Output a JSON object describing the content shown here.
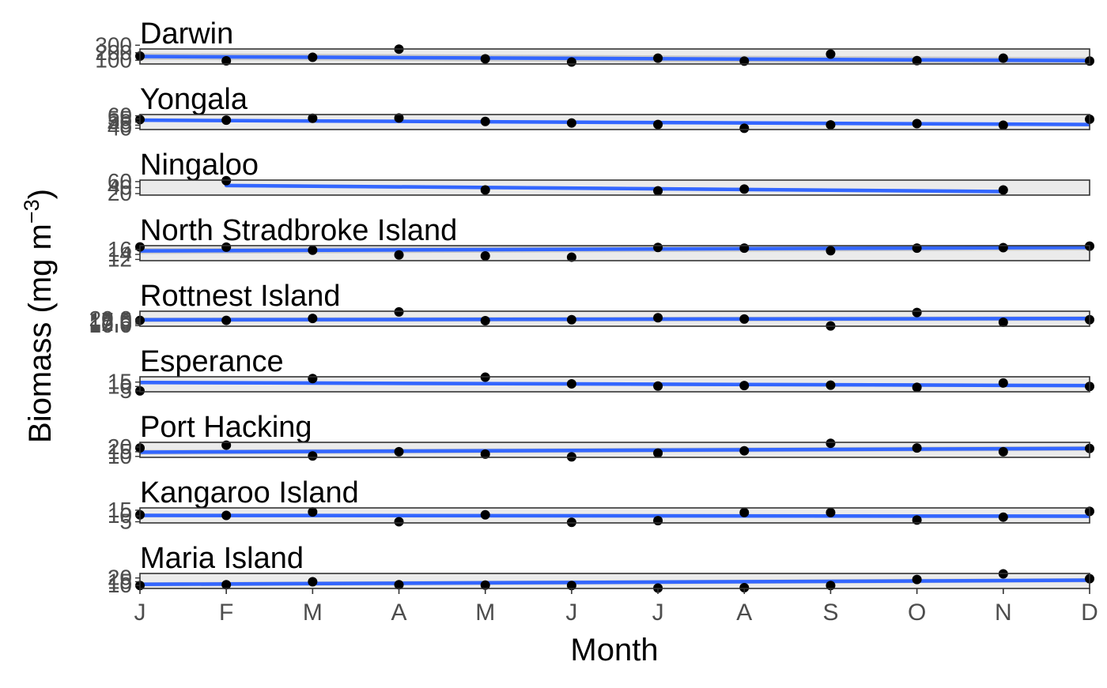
{
  "chart_data": {
    "type": "line",
    "xlabel": "Month",
    "ylabel": "Biomass (mg m",
    "ylabel_superscript": "−3",
    "ylabel_close": ")",
    "x_ticks": [
      "J",
      "F",
      "M",
      "A",
      "M",
      "J",
      "J",
      "A",
      "S",
      "O",
      "N",
      "D"
    ],
    "colors": {
      "trend": "#3366FF",
      "ribbon": "#BEBEBE",
      "panel_bg": "#EBEBEB",
      "points": "#000000",
      "frame": "#333333",
      "tick_text": "#4D4D4D",
      "title_text": "#000000"
    },
    "panels": [
      {
        "title": "Darwin",
        "ylim": [
          50,
          250
        ],
        "yticks": [
          "100",
          "200",
          "300"
        ],
        "points": [
          [
            1,
            155
          ],
          [
            2,
            92
          ],
          [
            3,
            140
          ],
          [
            4,
            248
          ],
          [
            5,
            118
          ],
          [
            6,
            76
          ],
          [
            7,
            128
          ],
          [
            8,
            88
          ],
          [
            9,
            182
          ],
          [
            10,
            95
          ],
          [
            11,
            128
          ],
          [
            12,
            90
          ]
        ],
        "trend": [
          [
            1,
            150
          ],
          [
            12,
            95
          ]
        ],
        "ribbon": 45
      },
      {
        "title": "Yongala",
        "ylim": [
          38,
          62
        ],
        "yticks": [
          "40",
          "45",
          "50",
          "55",
          "60"
        ],
        "points": [
          [
            1,
            54
          ],
          [
            2,
            53
          ],
          [
            3,
            56
          ],
          [
            4,
            56.5
          ],
          [
            5,
            51
          ],
          [
            6,
            48.5
          ],
          [
            7,
            46
          ],
          [
            8,
            40
          ],
          [
            9,
            45.5
          ],
          [
            10,
            47.5
          ],
          [
            11,
            45
          ],
          [
            12,
            54.5
          ]
        ],
        "trend": [
          [
            1,
            53
          ],
          [
            12,
            46
          ]
        ],
        "ribbon": 2.5
      },
      {
        "title": "Ningaloo",
        "ylim": [
          15,
          65
        ],
        "yticks": [
          "20",
          "40",
          "60"
        ],
        "points": [
          [
            2,
            63
          ],
          [
            5,
            32
          ],
          [
            7,
            29
          ],
          [
            8,
            35
          ],
          [
            11,
            32
          ]
        ],
        "trend": [
          [
            2,
            47
          ],
          [
            11,
            27
          ]
        ],
        "ribbon": 6
      },
      {
        "title": "North Stradbroke Island",
        "ylim": [
          11.5,
          17.5
        ],
        "yticks": [
          "12",
          "14",
          "16"
        ],
        "points": [
          [
            1,
            17
          ],
          [
            2,
            16.9
          ],
          [
            3,
            15.7
          ],
          [
            4,
            13.8
          ],
          [
            5,
            13.4
          ],
          [
            6,
            12.9
          ],
          [
            7,
            16.8
          ],
          [
            8,
            16.5
          ],
          [
            9,
            15.5
          ],
          [
            10,
            16.5
          ],
          [
            11,
            16.7
          ],
          [
            12,
            17.3
          ]
        ],
        "trend": [
          [
            1,
            15.4
          ],
          [
            12,
            16.8
          ]
        ],
        "ribbon": 1.2
      },
      {
        "title": "Rottnest Island",
        "ylim": [
          9,
          32
        ],
        "yticks": [
          "10.0",
          "12.5",
          "15.0",
          "17.5",
          "20.0"
        ],
        "points": [
          [
            1,
            18
          ],
          [
            2,
            18
          ],
          [
            3,
            21
          ],
          [
            4,
            31
          ],
          [
            5,
            17.5
          ],
          [
            6,
            19
          ],
          [
            7,
            22
          ],
          [
            8,
            20
          ],
          [
            9,
            9.5
          ],
          [
            10,
            30
          ],
          [
            11,
            15
          ],
          [
            12,
            19
          ]
        ],
        "trend": [
          [
            1,
            18.8
          ],
          [
            12,
            20.8
          ]
        ],
        "ribbon": 3.5
      },
      {
        "title": "Esperance",
        "ylim": [
          4,
          21
        ],
        "yticks": [
          "5",
          "10",
          "15"
        ],
        "points": [
          [
            1,
            5
          ],
          [
            3,
            19
          ],
          [
            5,
            20.5
          ],
          [
            6,
            13
          ],
          [
            7,
            10.5
          ],
          [
            8,
            11
          ],
          [
            9,
            11.5
          ],
          [
            10,
            9
          ],
          [
            11,
            14
          ],
          [
            12,
            10
          ]
        ],
        "trend": [
          [
            1,
            14.5
          ],
          [
            12,
            11
          ]
        ],
        "ribbon": 2
      },
      {
        "title": "Port Hacking",
        "ylim": [
          9,
          25
        ],
        "yticks": [
          "10",
          "15",
          "20"
        ],
        "points": [
          [
            1,
            19
          ],
          [
            2,
            22
          ],
          [
            3,
            10.5
          ],
          [
            4,
            15
          ],
          [
            5,
            12.5
          ],
          [
            6,
            9.5
          ],
          [
            7,
            13.5
          ],
          [
            8,
            16
          ],
          [
            9,
            24
          ],
          [
            10,
            19
          ],
          [
            11,
            15
          ],
          [
            12,
            18.5
          ]
        ],
        "trend": [
          [
            1,
            14.5
          ],
          [
            12,
            18.5
          ]
        ],
        "ribbon": 2.5
      },
      {
        "title": "Kangaroo Island",
        "ylim": [
          4,
          17
        ],
        "yticks": [
          "5",
          "10",
          "15"
        ],
        "points": [
          [
            1,
            11
          ],
          [
            2,
            10.5
          ],
          [
            3,
            13.5
          ],
          [
            4,
            5
          ],
          [
            5,
            11
          ],
          [
            6,
            4.5
          ],
          [
            7,
            6
          ],
          [
            8,
            13
          ],
          [
            9,
            13
          ],
          [
            10,
            6.5
          ],
          [
            11,
            9
          ],
          [
            12,
            14
          ]
        ],
        "trend": [
          [
            1,
            10.5
          ],
          [
            12,
            9.8
          ]
        ],
        "ribbon": 1.6
      },
      {
        "title": "Maria Island",
        "ylim": [
          6,
          26
        ],
        "yticks": [
          "10",
          "15",
          "20"
        ],
        "points": [
          [
            1,
            10
          ],
          [
            2,
            11
          ],
          [
            3,
            15
          ],
          [
            4,
            11
          ],
          [
            5,
            10.5
          ],
          [
            6,
            10
          ],
          [
            7,
            6.5
          ],
          [
            8,
            7
          ],
          [
            9,
            10
          ],
          [
            10,
            18
          ],
          [
            11,
            25.5
          ],
          [
            12,
            19
          ]
        ],
        "trend": [
          [
            1,
            11.5
          ],
          [
            12,
            17
          ]
        ],
        "ribbon": 2.8
      }
    ]
  }
}
